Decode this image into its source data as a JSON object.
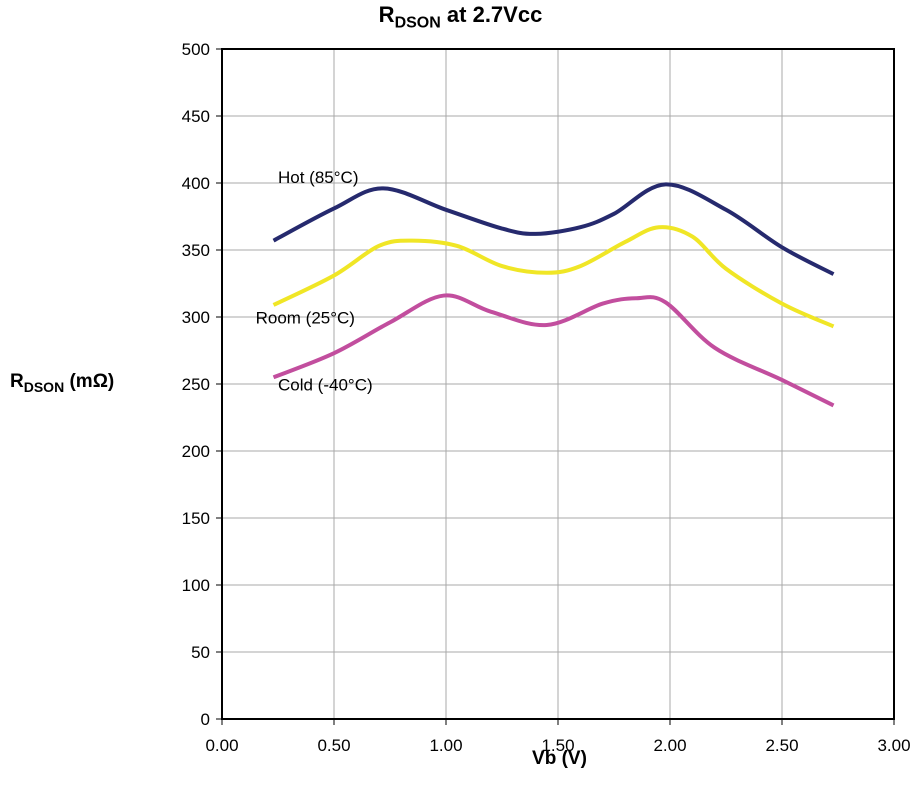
{
  "chart_data": {
    "type": "line",
    "title_main": "R",
    "title_sub": "DSON",
    "title_rest": " at 2.7Vcc",
    "ylabel_main": "R",
    "ylabel_sub": "DSON",
    "ylabel_rest": " (mΩ)",
    "xlabel": "Vb (V)",
    "xlim": [
      0,
      3
    ],
    "ylim": [
      0,
      500
    ],
    "xticks": [
      "0.00",
      "0.50",
      "1.00",
      "1.50",
      "2.00",
      "2.50",
      "3.00"
    ],
    "yticks": [
      "0",
      "50",
      "100",
      "150",
      "200",
      "250",
      "300",
      "350",
      "400",
      "450",
      "500"
    ],
    "grid": true,
    "series": [
      {
        "name": "Hot (85°C)",
        "color": "#262a6e",
        "label_at": [
          0.25,
          400
        ],
        "points": [
          [
            0.23,
            357
          ],
          [
            0.5,
            381
          ],
          [
            0.72,
            396
          ],
          [
            1.0,
            380
          ],
          [
            1.25,
            366
          ],
          [
            1.4,
            362
          ],
          [
            1.6,
            367
          ],
          [
            1.75,
            377
          ],
          [
            1.98,
            399
          ],
          [
            2.25,
            380
          ],
          [
            2.5,
            352
          ],
          [
            2.73,
            332
          ]
        ]
      },
      {
        "name": "Room (25°C)",
        "color": "#f0e626",
        "label_at": [
          0.15,
          295
        ],
        "points": [
          [
            0.23,
            309
          ],
          [
            0.5,
            331
          ],
          [
            0.7,
            353
          ],
          [
            0.85,
            357
          ],
          [
            1.05,
            353
          ],
          [
            1.25,
            338
          ],
          [
            1.45,
            333
          ],
          [
            1.6,
            338
          ],
          [
            1.8,
            356
          ],
          [
            1.95,
            367
          ],
          [
            2.1,
            360
          ],
          [
            2.25,
            336
          ],
          [
            2.5,
            310
          ],
          [
            2.73,
            293
          ]
        ]
      },
      {
        "name": "Cold (-40°C)",
        "color": "#c24e9e",
        "label_at": [
          0.25,
          245
        ],
        "points": [
          [
            0.23,
            255
          ],
          [
            0.5,
            273
          ],
          [
            0.75,
            296
          ],
          [
            0.99,
            316
          ],
          [
            1.2,
            304
          ],
          [
            1.45,
            294
          ],
          [
            1.7,
            310
          ],
          [
            1.85,
            314
          ],
          [
            1.98,
            311
          ],
          [
            2.2,
            277
          ],
          [
            2.5,
            253
          ],
          [
            2.73,
            234
          ]
        ]
      }
    ]
  }
}
